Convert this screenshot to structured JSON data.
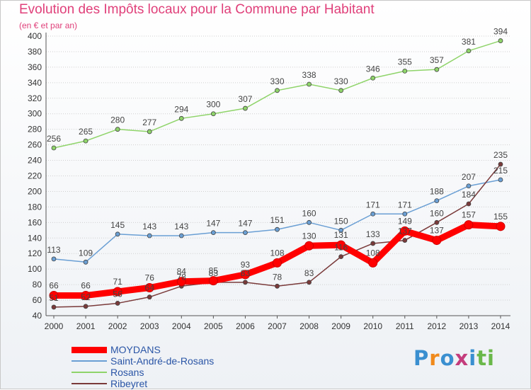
{
  "title": "Evolution des Impôts locaux pour la Commune par Habitant",
  "subtitle": "(en € et par an)",
  "logo": "Proxiti",
  "logo_letters": [
    "P",
    "r",
    "o",
    "x",
    "i",
    "ti"
  ],
  "colors": {
    "title": "#e0407a",
    "axis_text": "#333333",
    "grid": "#d0d0d0",
    "moydans": "#ff0000",
    "saint_andre": "#6a9fd4",
    "rosans": "#8fd46a",
    "ribeyret": "#7a3a3a"
  },
  "chart_data": {
    "type": "line",
    "title": "Evolution des Impôts locaux pour la Commune par Habitant",
    "ylabel": "(en € et par an)",
    "xlabel": "",
    "categories": [
      "2000",
      "2001",
      "2002",
      "2003",
      "2004",
      "2005",
      "2006",
      "2007",
      "2008",
      "2009",
      "2010",
      "2011",
      "2012",
      "2013",
      "2014"
    ],
    "ylim": [
      40,
      400
    ],
    "yticks": [
      40,
      60,
      80,
      100,
      120,
      140,
      160,
      180,
      200,
      220,
      240,
      260,
      280,
      300,
      320,
      340,
      360,
      380,
      400
    ],
    "legend_position": "bottom-left",
    "series": [
      {
        "name": "MOYDANS",
        "key": "moydans",
        "values": [
          66,
          66,
          71,
          76,
          84,
          85,
          93,
          108,
          130,
          131,
          108,
          149,
          137,
          157,
          155
        ],
        "width": 9,
        "marker": 6
      },
      {
        "name": "Saint-André-de-Rosans",
        "key": "saint_andre",
        "values": [
          113,
          109,
          145,
          143,
          143,
          147,
          147,
          151,
          160,
          150,
          171,
          171,
          188,
          207,
          215
        ],
        "width": 1.5,
        "marker": 3
      },
      {
        "name": "Rosans",
        "key": "rosans",
        "values": [
          256,
          265,
          280,
          277,
          294,
          300,
          307,
          330,
          338,
          330,
          346,
          355,
          357,
          381,
          394
        ],
        "width": 1.5,
        "marker": 3
      },
      {
        "name": "Ribeyret",
        "key": "ribeyret",
        "values": [
          51,
          52,
          56,
          64,
          78,
          83,
          83,
          78,
          83,
          116,
          133,
          137,
          160,
          184,
          235
        ],
        "width": 1.5,
        "marker": 3
      }
    ]
  }
}
